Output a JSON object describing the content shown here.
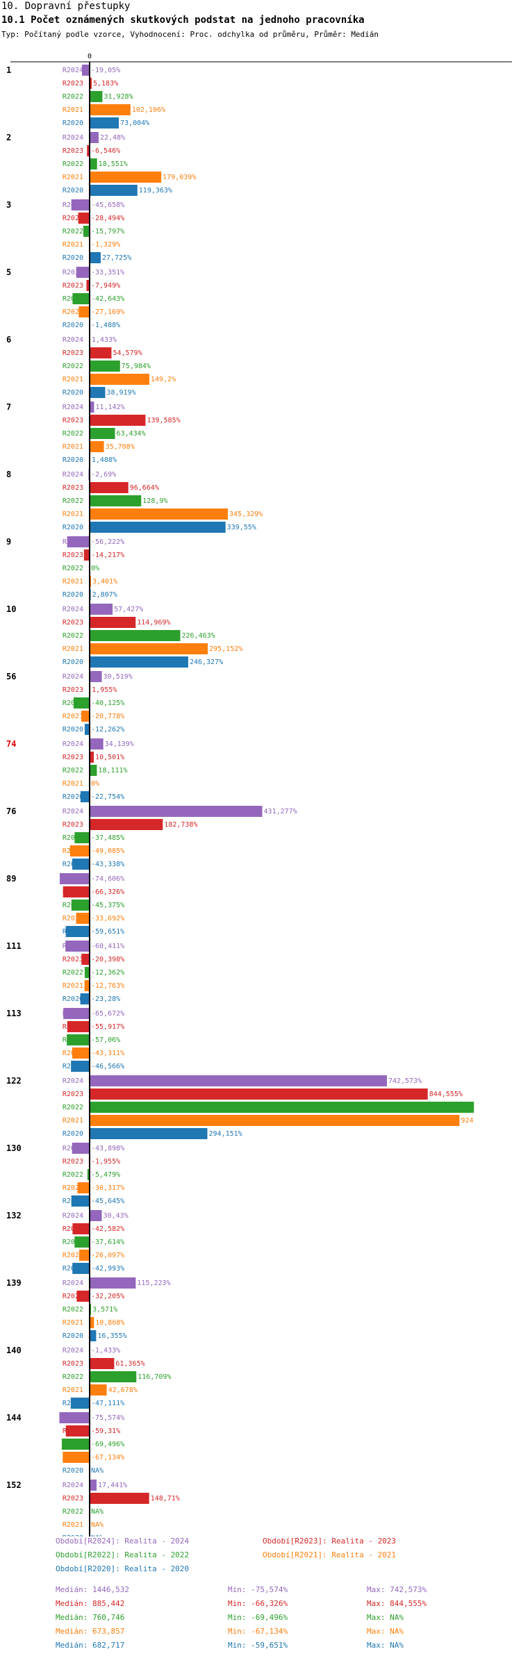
{
  "page": {
    "title": "10. Dopravní přestupky",
    "subtitle": "10.1 Počet oznámených skutkových podstat na jednoho pracovníka",
    "type_line": "Typ: Počítaný podle vzorce, Vyhodnocení: Proc. odchylka od průměru, Průměr: Medián"
  },
  "colors": {
    "R2024": "#9467bd",
    "R2023": "#d62728",
    "R2022": "#2ca02c",
    "R2021": "#ff7f0e",
    "R2020": "#1f77b4",
    "highlight_group": "#e00000"
  },
  "chart_data": {
    "type": "bar",
    "orientation": "horizontal",
    "zero_label": "0",
    "series_order": [
      "R2024",
      "R2023",
      "R2022",
      "R2021",
      "R2020"
    ],
    "groups": [
      {
        "id": "1",
        "highlight": false,
        "values": [
          -19.05,
          5.183,
          31.928,
          102.106,
          73.004
        ],
        "labels": [
          "-19,05%",
          "5,183%",
          "31,928%",
          "102,106%",
          "73,004%"
        ]
      },
      {
        "id": "2",
        "highlight": false,
        "values": [
          22.48,
          -6.546,
          18.551,
          179.039,
          119.363
        ],
        "labels": [
          "22,48%",
          "-6,546%",
          "18,551%",
          "179,039%",
          "119,363%"
        ]
      },
      {
        "id": "3",
        "highlight": false,
        "values": [
          -45.658,
          -28.494,
          -15.797,
          -1.329,
          27.725
        ],
        "labels": [
          "-45,658%",
          "-28,494%",
          "-15,797%",
          "-1,329%",
          "27,725%"
        ]
      },
      {
        "id": "5",
        "highlight": false,
        "values": [
          -33.351,
          -7.949,
          -42.643,
          -27.169,
          -1.488
        ],
        "labels": [
          "-33,351%",
          "-7,949%",
          "-42,643%",
          "-27,169%",
          "-1,488%"
        ]
      },
      {
        "id": "6",
        "highlight": false,
        "values": [
          1.433,
          54.579,
          75.984,
          149.2,
          38.919
        ],
        "labels": [
          "1,433%",
          "54,579%",
          "75,984%",
          "149,2%",
          "38,919%"
        ]
      },
      {
        "id": "7",
        "highlight": false,
        "values": [
          11.142,
          139.585,
          63.434,
          35.708,
          1.488
        ],
        "labels": [
          "11,142%",
          "139,585%",
          "63,434%",
          "35,708%",
          "1,488%"
        ]
      },
      {
        "id": "8",
        "highlight": false,
        "values": [
          -2.69,
          96.664,
          128.9,
          345.329,
          339.55
        ],
        "labels": [
          "-2,69%",
          "96,664%",
          "128,9%",
          "345,329%",
          "339,55%"
        ]
      },
      {
        "id": "9",
        "highlight": false,
        "values": [
          -56.222,
          -14.217,
          0,
          3.401,
          2.807
        ],
        "labels": [
          "-56,222%",
          "-14,217%",
          "0%",
          "3,401%",
          "2,807%"
        ]
      },
      {
        "id": "10",
        "highlight": false,
        "values": [
          57.427,
          114.969,
          226.463,
          295.152,
          246.327
        ],
        "labels": [
          "57,427%",
          "114,969%",
          "226,463%",
          "295,152%",
          "246,327%"
        ]
      },
      {
        "id": "56",
        "highlight": false,
        "values": [
          30.519,
          1.955,
          -40.125,
          -20.778,
          -12.262
        ],
        "labels": [
          "30,519%",
          "1,955%",
          "-40,125%",
          "-20,778%",
          "-12,262%"
        ]
      },
      {
        "id": "74",
        "highlight": true,
        "values": [
          34.139,
          10.501,
          18.111,
          0,
          -22.754
        ],
        "labels": [
          "34,139%",
          "10,501%",
          "18,111%",
          "0%",
          "-22,754%"
        ]
      },
      {
        "id": "76",
        "highlight": false,
        "values": [
          431.277,
          182.738,
          -37.485,
          -49.085,
          -43.338
        ],
        "labels": [
          "431,277%",
          "182,738%",
          "-37,485%",
          "-49,085%",
          "-43,338%"
        ]
      },
      {
        "id": "89",
        "highlight": false,
        "values": [
          -74.606,
          -66.326,
          -45.375,
          -33.692,
          -59.651
        ],
        "labels": [
          "-74,606%",
          "-66,326%",
          "-45,375%",
          "-33,692%",
          "-59,651%"
        ]
      },
      {
        "id": "111",
        "highlight": false,
        "values": [
          -60.411,
          -20.398,
          -12.362,
          -12.763,
          -23.28
        ],
        "labels": [
          "-60,411%",
          "-20,398%",
          "-12,362%",
          "-12,763%",
          "-23,28%"
        ]
      },
      {
        "id": "113",
        "highlight": false,
        "values": [
          -65.672,
          -55.917,
          -57.06,
          -43.311,
          -46.566
        ],
        "labels": [
          "-65,672%",
          "-55,917%",
          "-57,06%",
          "-43,311%",
          "-46,566%"
        ]
      },
      {
        "id": "122",
        "highlight": false,
        "values": [
          742.573,
          844.555,
          960,
          924,
          294.151
        ],
        "labels": [
          "742,573%",
          "844,555%",
          "",
          "924",
          "294,151%"
        ]
      },
      {
        "id": "130",
        "highlight": false,
        "values": [
          -43.898,
          -1.955,
          -5.479,
          -30.317,
          -45.645
        ],
        "labels": [
          "-43,898%",
          "-1,955%",
          "-5,479%",
          "-30,317%",
          "-45,645%"
        ]
      },
      {
        "id": "132",
        "highlight": false,
        "values": [
          30.43,
          -42.582,
          -37.614,
          -26.097,
          -42.993
        ],
        "labels": [
          "30,43%",
          "-42,582%",
          "-37,614%",
          "-26,097%",
          "-42,993%"
        ]
      },
      {
        "id": "139",
        "highlight": false,
        "values": [
          115.223,
          -32.205,
          3.571,
          10.868,
          16.355
        ],
        "labels": [
          "115,223%",
          "-32,205%",
          "3,571%",
          "10,868%",
          "16,355%"
        ]
      },
      {
        "id": "140",
        "highlight": false,
        "values": [
          -1.433,
          61.365,
          116.709,
          42.678,
          -47.111
        ],
        "labels": [
          "-1,433%",
          "61,365%",
          "116,709%",
          "42,678%",
          "-47,111%"
        ]
      },
      {
        "id": "144",
        "highlight": false,
        "values": [
          -75.574,
          -59.31,
          -69.496,
          -67.134,
          null
        ],
        "labels": [
          "-75,574%",
          "-59,31%",
          "-69,496%",
          "-67,134%",
          "NA%"
        ]
      },
      {
        "id": "152",
        "highlight": false,
        "values": [
          17.441,
          148.71,
          null,
          null,
          null
        ],
        "labels": [
          "17,441%",
          "148,71%",
          "NA%",
          "NA%",
          "NA%"
        ]
      }
    ]
  },
  "legend": {
    "periods": [
      {
        "series": "R2024",
        "text": "Období[R2024]: Realita - 2024"
      },
      {
        "series": "R2023",
        "text": "Období[R2023]: Realita - 2023"
      },
      {
        "series": "R2022",
        "text": "Období[R2022]: Realita - 2022"
      },
      {
        "series": "R2021",
        "text": "Období[R2021]: Realita - 2021"
      },
      {
        "series": "R2020",
        "text": "Období[R2020]: Realita - 2020"
      }
    ],
    "stats": [
      {
        "series": "R2024",
        "median": "Medián: 1446,532",
        "min": "Min: -75,574%",
        "max": "Max: 742,573%"
      },
      {
        "series": "R2023",
        "median": "Medián: 885,442",
        "min": "Min: -66,326%",
        "max": "Max: 844,555%"
      },
      {
        "series": "R2022",
        "median": "Medián: 760,746",
        "min": "Min: -69,496%",
        "max": "Max: NA%"
      },
      {
        "series": "R2021",
        "median": "Medián: 673,857",
        "min": "Min: -67,134%",
        "max": "Max: NA%"
      },
      {
        "series": "R2020",
        "median": "Medián: 682,717",
        "min": "Min: -59,651%",
        "max": "Max: NA%"
      }
    ]
  }
}
